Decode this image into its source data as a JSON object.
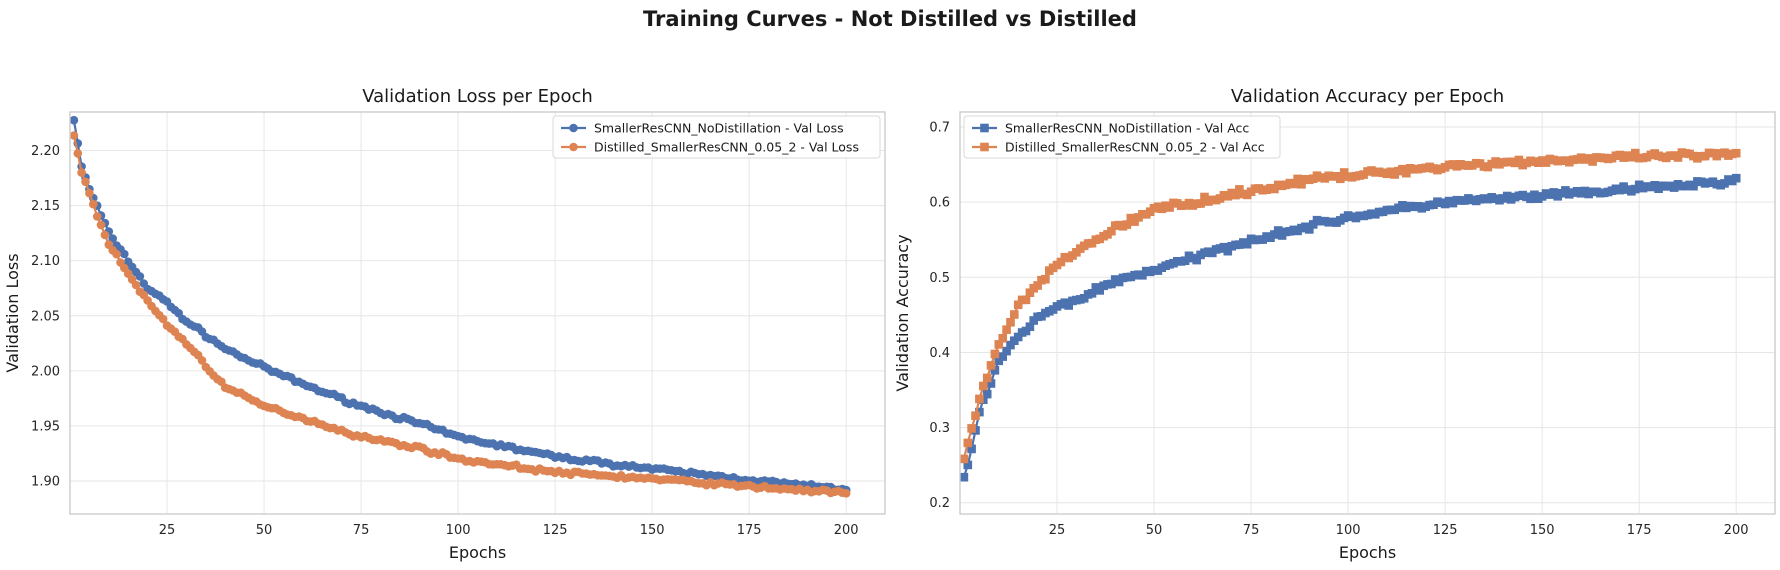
{
  "figure_title": "Training Curves - Not Distilled vs Distilled",
  "colors": {
    "blue": "#4c72b0",
    "orange": "#dd8452"
  },
  "chart_data": [
    {
      "type": "line",
      "title": "Validation Loss per Epoch",
      "xlabel": "Epochs",
      "ylabel": "Validation Loss",
      "xlim": [
        0,
        210
      ],
      "ylim": [
        1.87,
        2.235
      ],
      "x_ticks": [
        25,
        50,
        75,
        100,
        125,
        150,
        175,
        200
      ],
      "y_ticks": [
        1.9,
        1.95,
        2.0,
        2.05,
        2.1,
        2.15,
        2.2
      ],
      "grid": true,
      "legend_position": "upper right",
      "marker": "circle",
      "x_range": [
        1,
        200
      ],
      "series": [
        {
          "name": "SmallerResCNN_NoDistillation - Val Loss",
          "color": "#4c72b0",
          "samples": [
            {
              "epoch": 1,
              "value": 2.228
            },
            {
              "epoch": 3,
              "value": 2.185
            },
            {
              "epoch": 5,
              "value": 2.165
            },
            {
              "epoch": 10,
              "value": 2.125
            },
            {
              "epoch": 15,
              "value": 2.1
            },
            {
              "epoch": 20,
              "value": 2.075
            },
            {
              "epoch": 25,
              "value": 2.062
            },
            {
              "epoch": 30,
              "value": 2.045
            },
            {
              "epoch": 40,
              "value": 2.02
            },
            {
              "epoch": 50,
              "value": 2.003
            },
            {
              "epoch": 60,
              "value": 1.988
            },
            {
              "epoch": 75,
              "value": 1.968
            },
            {
              "epoch": 90,
              "value": 1.952
            },
            {
              "epoch": 100,
              "value": 1.94
            },
            {
              "epoch": 125,
              "value": 1.922
            },
            {
              "epoch": 150,
              "value": 1.911
            },
            {
              "epoch": 175,
              "value": 1.901
            },
            {
              "epoch": 200,
              "value": 1.892
            }
          ]
        },
        {
          "name": "Distilled_SmallerResCNN_0.05_2 - Val Loss",
          "color": "#dd8452",
          "samples": [
            {
              "epoch": 1,
              "value": 2.215
            },
            {
              "epoch": 3,
              "value": 2.18
            },
            {
              "epoch": 5,
              "value": 2.16
            },
            {
              "epoch": 10,
              "value": 2.115
            },
            {
              "epoch": 15,
              "value": 2.088
            },
            {
              "epoch": 20,
              "value": 2.063
            },
            {
              "epoch": 25,
              "value": 2.042
            },
            {
              "epoch": 30,
              "value": 2.025
            },
            {
              "epoch": 40,
              "value": 1.985
            },
            {
              "epoch": 50,
              "value": 1.968
            },
            {
              "epoch": 60,
              "value": 1.957
            },
            {
              "epoch": 75,
              "value": 1.94
            },
            {
              "epoch": 90,
              "value": 1.93
            },
            {
              "epoch": 100,
              "value": 1.92
            },
            {
              "epoch": 125,
              "value": 1.908
            },
            {
              "epoch": 150,
              "value": 1.902
            },
            {
              "epoch": 175,
              "value": 1.895
            },
            {
              "epoch": 200,
              "value": 1.889
            }
          ]
        }
      ]
    },
    {
      "type": "line",
      "title": "Validation Accuracy per Epoch",
      "xlabel": "Epochs",
      "ylabel": "Validation Accuracy",
      "xlim": [
        0,
        210
      ],
      "ylim": [
        0.185,
        0.72
      ],
      "x_ticks": [
        25,
        50,
        75,
        100,
        125,
        150,
        175,
        200
      ],
      "y_ticks": [
        0.2,
        0.3,
        0.4,
        0.5,
        0.6,
        0.7
      ],
      "grid": true,
      "legend_position": "upper left",
      "marker": "square",
      "x_range": [
        1,
        200
      ],
      "series": [
        {
          "name": "SmallerResCNN_NoDistillation - Val Acc",
          "color": "#4c72b0",
          "samples": [
            {
              "epoch": 1,
              "value": 0.23
            },
            {
              "epoch": 3,
              "value": 0.27
            },
            {
              "epoch": 5,
              "value": 0.32
            },
            {
              "epoch": 10,
              "value": 0.39
            },
            {
              "epoch": 15,
              "value": 0.42
            },
            {
              "epoch": 20,
              "value": 0.445
            },
            {
              "epoch": 25,
              "value": 0.46
            },
            {
              "epoch": 30,
              "value": 0.47
            },
            {
              "epoch": 40,
              "value": 0.495
            },
            {
              "epoch": 50,
              "value": 0.51
            },
            {
              "epoch": 60,
              "value": 0.525
            },
            {
              "epoch": 75,
              "value": 0.55
            },
            {
              "epoch": 90,
              "value": 0.568
            },
            {
              "epoch": 100,
              "value": 0.58
            },
            {
              "epoch": 125,
              "value": 0.6
            },
            {
              "epoch": 150,
              "value": 0.608
            },
            {
              "epoch": 175,
              "value": 0.618
            },
            {
              "epoch": 200,
              "value": 0.628
            }
          ]
        },
        {
          "name": "Distilled_SmallerResCNN_0.05_2 - Val Acc",
          "color": "#dd8452",
          "samples": [
            {
              "epoch": 1,
              "value": 0.26
            },
            {
              "epoch": 3,
              "value": 0.3
            },
            {
              "epoch": 5,
              "value": 0.34
            },
            {
              "epoch": 10,
              "value": 0.41
            },
            {
              "epoch": 15,
              "value": 0.46
            },
            {
              "epoch": 20,
              "value": 0.49
            },
            {
              "epoch": 25,
              "value": 0.515
            },
            {
              "epoch": 30,
              "value": 0.535
            },
            {
              "epoch": 40,
              "value": 0.565
            },
            {
              "epoch": 50,
              "value": 0.59
            },
            {
              "epoch": 60,
              "value": 0.6
            },
            {
              "epoch": 75,
              "value": 0.615
            },
            {
              "epoch": 90,
              "value": 0.63
            },
            {
              "epoch": 100,
              "value": 0.635
            },
            {
              "epoch": 125,
              "value": 0.648
            },
            {
              "epoch": 150,
              "value": 0.655
            },
            {
              "epoch": 175,
              "value": 0.66
            },
            {
              "epoch": 200,
              "value": 0.663
            }
          ]
        }
      ]
    }
  ]
}
